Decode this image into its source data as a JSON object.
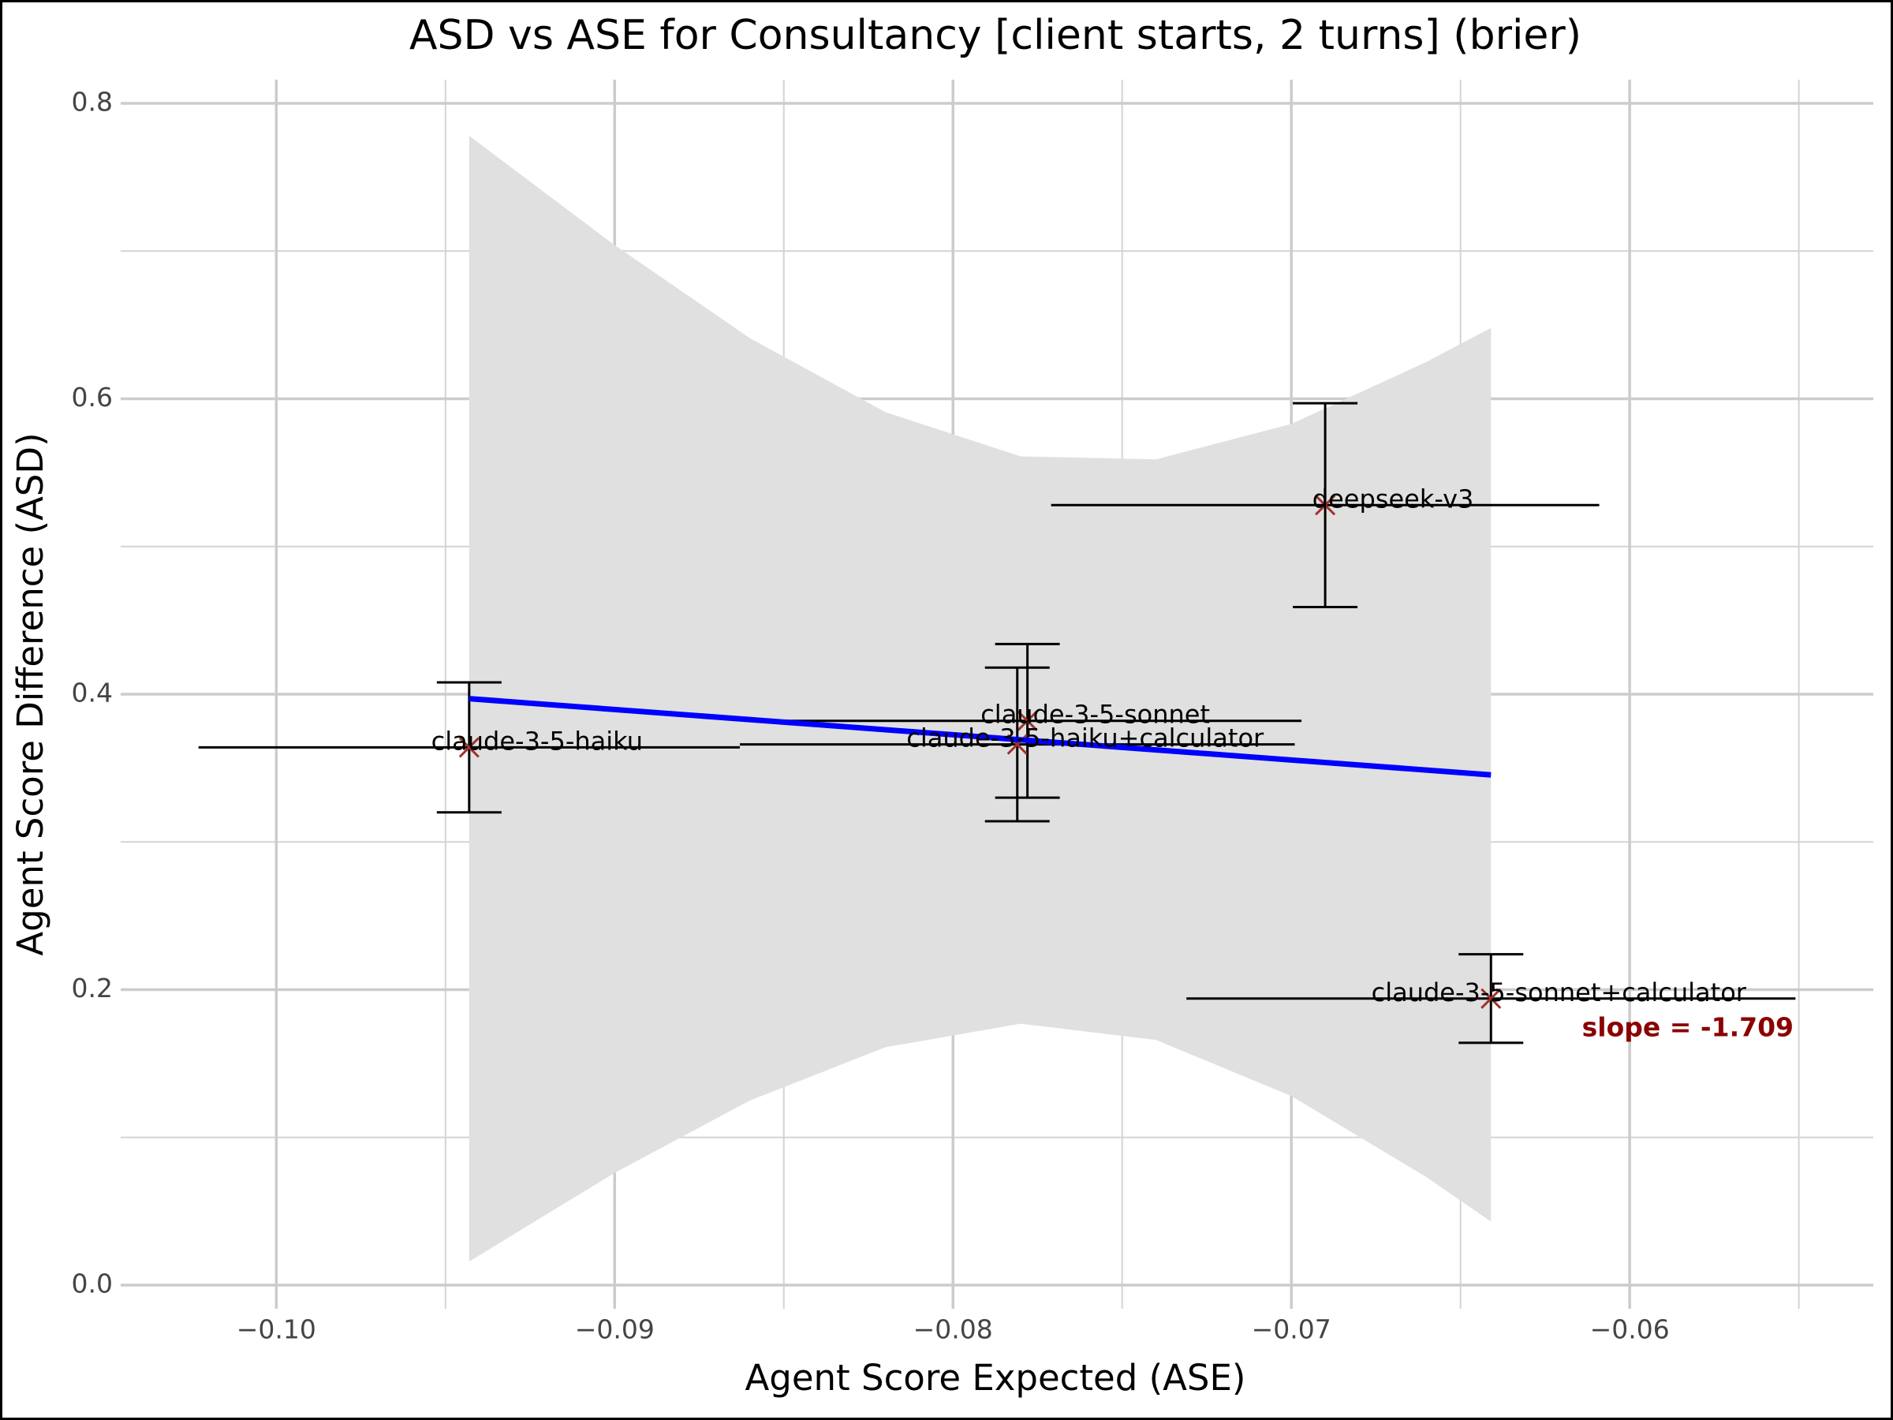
{
  "chart_data": {
    "type": "errorbar-scatter",
    "title": "ASD vs ASE for Consultancy [client starts, 2 turns] (brier)",
    "x_label": "Agent Score Expected (ASE)",
    "y_label": "Agent Score Difference (ASD)",
    "xlim": [
      -0.1046,
      -0.0528
    ],
    "ylim": [
      -0.016,
      0.816
    ],
    "xticks": [
      {
        "value": -0.1,
        "label": "−0.10"
      },
      {
        "value": -0.09,
        "label": "−0.09"
      },
      {
        "value": -0.08,
        "label": "−0.08"
      },
      {
        "value": -0.07,
        "label": "−0.07"
      },
      {
        "value": -0.06,
        "label": "−0.06"
      }
    ],
    "yticks": [
      {
        "value": 0,
        "label": "0.0"
      },
      0.2,
      0.4,
      0.6,
      0.8
    ],
    "x_minor_ticks": [
      -0.095,
      -0.085,
      -0.075,
      -0.065,
      -0.055
    ],
    "y_minor_ticks": [
      0.1,
      0.3,
      0.5,
      0.7
    ],
    "grid": true,
    "marker_color": "#a0322d",
    "errorbar_color": "#000000",
    "points": [
      {
        "name": "claude-3-5-haiku",
        "x": -0.0943,
        "y": 0.364,
        "xerr": 0.008,
        "yerr": 0.044
      },
      {
        "name": "claude-3-5-sonnet",
        "x": -0.0778,
        "y": 0.382,
        "xerr": 0.0081,
        "yerr": 0.052
      },
      {
        "name": "claude-3-5-haiku+calculator",
        "x": -0.0781,
        "y": 0.366,
        "xerr": 0.0082,
        "yerr": 0.052
      },
      {
        "name": "deepseek-v3",
        "x": -0.069,
        "y": 0.528,
        "xerr": 0.0081,
        "yerr": 0.069
      },
      {
        "name": "claude-3-5-sonnet+calculator",
        "x": -0.0641,
        "y": 0.194,
        "xerr": 0.009,
        "yerr": 0.03
      }
    ],
    "fit": {
      "color": "#0000ff",
      "x": [
        -0.0943,
        -0.0641
      ],
      "y": [
        0.397,
        0.3454
      ]
    },
    "band": {
      "color": "#e0e0e0",
      "x": [
        -0.0943,
        -0.09,
        -0.086,
        -0.082,
        -0.078,
        -0.074,
        -0.07,
        -0.066,
        -0.0641
      ],
      "lower": [
        0.016,
        0.076,
        0.125,
        0.161,
        0.177,
        0.166,
        0.128,
        0.073,
        0.043
      ],
      "upper": [
        0.778,
        0.704,
        0.641,
        0.591,
        0.561,
        0.559,
        0.583,
        0.625,
        0.648
      ]
    },
    "annotation": {
      "text": "slope = -1.709",
      "color": "#8b0000"
    }
  }
}
